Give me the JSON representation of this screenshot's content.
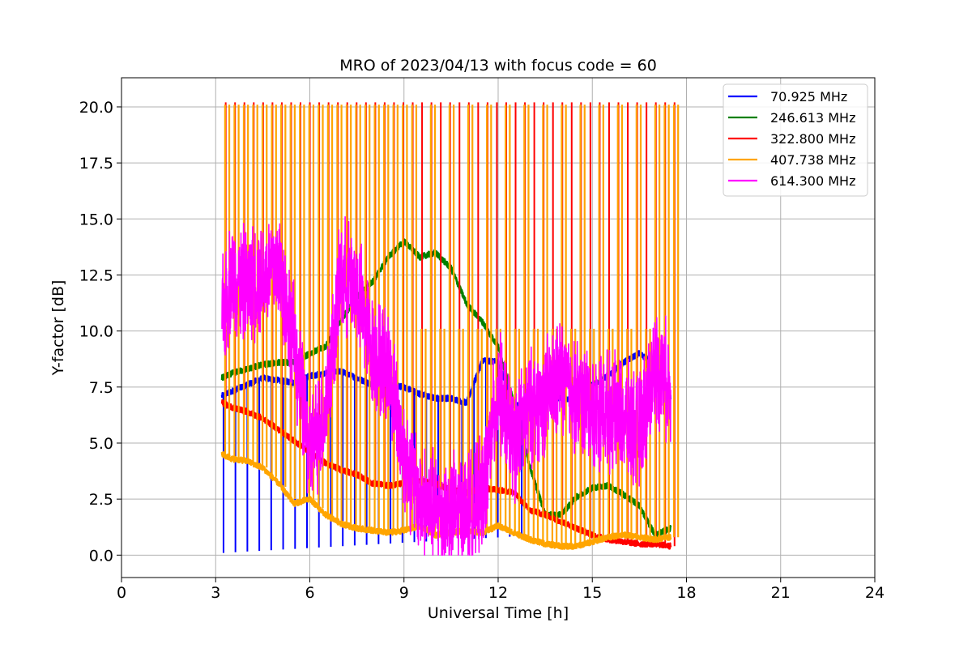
{
  "chart_data": {
    "type": "line",
    "title": "MRO of 2023/04/13 with focus code = 60",
    "xlabel": "Universal Time [h]",
    "ylabel": "Y-factor [dB]",
    "xlim": [
      0,
      24
    ],
    "ylim": [
      -1.0,
      21.3
    ],
    "xticks": [
      0,
      3,
      6,
      9,
      12,
      15,
      18,
      21,
      24
    ],
    "xtick_labels": [
      "0",
      "3",
      "6",
      "9",
      "12",
      "15",
      "18",
      "21",
      "24"
    ],
    "yticks": [
      0,
      2.5,
      5,
      7.5,
      10,
      12.5,
      15,
      17.5,
      20
    ],
    "ytick_labels": [
      "0.0",
      "2.5",
      "5.0",
      "7.5",
      "10.0",
      "12.5",
      "15.0",
      "17.5",
      "20.0"
    ],
    "grid": true,
    "legend_position": "top-right",
    "series": [
      {
        "name": "70.925 MHz",
        "color": "#0000ff",
        "x": [
          3.2,
          3.5,
          4.0,
          4.5,
          5.0,
          5.5,
          6.0,
          6.5,
          7.0,
          7.5,
          8.0,
          8.5,
          9.0,
          9.5,
          10.0,
          10.5,
          11.0,
          11.5,
          12.0,
          12.5,
          13.0,
          13.5,
          14.0,
          14.5,
          15.0,
          15.5,
          16.0,
          16.5,
          17.0,
          17.5
        ],
        "y": [
          7.1,
          7.3,
          7.6,
          7.9,
          7.8,
          7.7,
          8.0,
          8.1,
          8.2,
          7.9,
          7.6,
          7.6,
          7.5,
          7.2,
          7.0,
          7.0,
          6.8,
          8.7,
          8.6,
          6.7,
          6.6,
          6.9,
          7.0,
          6.9,
          7.6,
          8.0,
          8.6,
          9.0,
          8.5,
          7.0
        ],
        "dips_to": 0.1
      },
      {
        "name": "246.613 MHz",
        "color": "#008000",
        "x": [
          3.2,
          3.5,
          4.0,
          4.5,
          5.0,
          5.5,
          6.0,
          6.5,
          7.0,
          7.5,
          8.0,
          8.5,
          9.0,
          9.5,
          10.0,
          10.5,
          11.0,
          11.5,
          12.0,
          12.5,
          13.0,
          13.5,
          14.0,
          14.5,
          15.0,
          15.5,
          16.0,
          16.5,
          17.0,
          17.5
        ],
        "y": [
          7.9,
          8.1,
          8.3,
          8.5,
          8.6,
          8.6,
          9.0,
          9.3,
          10.5,
          11.5,
          12.2,
          13.3,
          14.0,
          13.3,
          13.5,
          12.8,
          11.2,
          10.4,
          9.3,
          6.8,
          4.0,
          1.8,
          1.8,
          2.6,
          3.0,
          3.1,
          2.7,
          2.2,
          0.9,
          1.2
        ]
      },
      {
        "name": "322.800 MHz",
        "color": "#ff0000",
        "x": [
          3.2,
          3.5,
          4.0,
          4.5,
          5.0,
          5.5,
          6.0,
          6.5,
          7.0,
          7.5,
          8.0,
          8.5,
          9.0,
          9.5,
          10.0,
          10.5,
          11.0,
          11.5,
          12.0,
          12.5,
          13.0,
          13.5,
          14.0,
          14.5,
          15.0,
          15.5,
          16.0,
          16.5,
          17.0,
          17.5
        ],
        "y": [
          6.8,
          6.6,
          6.4,
          6.1,
          5.6,
          5.1,
          4.6,
          4.1,
          3.8,
          3.6,
          3.2,
          3.1,
          3.2,
          3.3,
          3.2,
          2.9,
          2.8,
          3.0,
          2.9,
          2.8,
          2.0,
          1.8,
          1.5,
          1.2,
          0.9,
          0.7,
          0.6,
          0.5,
          0.5,
          0.4
        ],
        "spikes_to": 20.2
      },
      {
        "name": "407.738 MHz",
        "color": "#ffa500",
        "x": [
          3.2,
          3.5,
          4.0,
          4.5,
          5.0,
          5.5,
          6.0,
          6.5,
          7.0,
          7.5,
          8.0,
          8.5,
          9.0,
          9.5,
          10.0,
          10.5,
          11.0,
          11.5,
          12.0,
          12.5,
          13.0,
          13.5,
          14.0,
          14.5,
          15.0,
          15.5,
          16.0,
          16.5,
          17.0,
          17.5
        ],
        "y": [
          4.5,
          4.3,
          4.2,
          3.9,
          3.2,
          2.3,
          2.5,
          1.8,
          1.4,
          1.2,
          1.1,
          1.0,
          1.1,
          1.3,
          0.9,
          1.0,
          1.1,
          1.0,
          1.3,
          1.0,
          0.7,
          0.5,
          0.4,
          0.4,
          0.6,
          0.8,
          0.9,
          0.8,
          0.7,
          0.8
        ],
        "spikes_to": 20.1,
        "spikes_mid": 10.1
      },
      {
        "name": "614.300 MHz",
        "color": "#ff00ff",
        "x": [
          3.2,
          3.5,
          4.0,
          4.5,
          5.0,
          5.5,
          6.0,
          6.5,
          7.0,
          7.5,
          8.0,
          8.5,
          9.0,
          9.5,
          10.0,
          10.5,
          11.0,
          11.5,
          12.0,
          12.5,
          13.0,
          13.5,
          14.0,
          14.5,
          15.0,
          15.5,
          16.0,
          16.5,
          17.0,
          17.5
        ],
        "y": [
          10.5,
          12.5,
          12.0,
          12.5,
          13.0,
          9.5,
          4.5,
          6.5,
          12.5,
          12.0,
          9.0,
          8.5,
          4.5,
          2.5,
          2.0,
          2.0,
          2.0,
          2.5,
          7.5,
          5.0,
          6.5,
          7.0,
          8.0,
          7.0,
          6.5,
          6.5,
          6.0,
          5.5,
          8.5,
          7.5
        ],
        "amplitude": 3.0
      }
    ]
  }
}
